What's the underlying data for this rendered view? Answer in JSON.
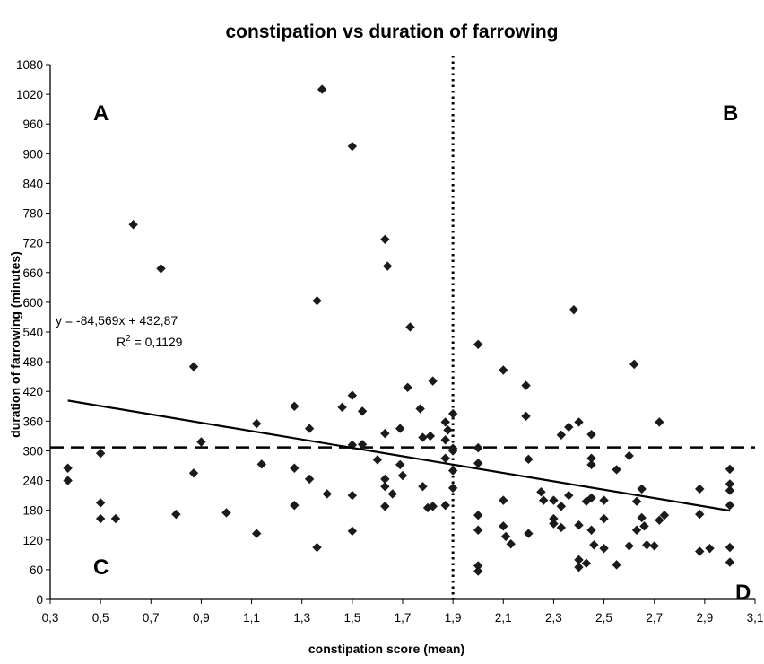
{
  "chart_data": {
    "type": "scatter",
    "title": "constipation vs duration of farrowing",
    "xlabel": "constipation score (mean)",
    "ylabel": "duration of farrowing (minutes)",
    "xlim": [
      0.3,
      3.1
    ],
    "ylim": [
      0,
      1080
    ],
    "x_ticks": [
      "0,3",
      "0,5",
      "0,7",
      "0,9",
      "1,1",
      "1,3",
      "1,5",
      "1,7",
      "1,9",
      "2,1",
      "2,3",
      "2,5",
      "2,7",
      "2,9",
      "3,1"
    ],
    "y_ticks": [
      "0",
      "60",
      "120",
      "180",
      "240",
      "300",
      "360",
      "420",
      "480",
      "540",
      "600",
      "660",
      "720",
      "780",
      "840",
      "900",
      "960",
      "1020",
      "1080"
    ],
    "grid": false,
    "marker": "diamond",
    "marker_color": "#1a1a1a",
    "quadrant_labels": [
      "A",
      "B",
      "C",
      "D"
    ],
    "reference_lines": {
      "vertical_x": 1.9,
      "horizontal_y": 307
    },
    "trendline": {
      "slope": -84.569,
      "intercept": 432.87,
      "x_range": [
        0.37,
        3.0
      ],
      "equation_label": "y = -84,569x + 432,87",
      "r2_label": "R",
      "r2_sup": "2",
      "r2_value": " = 0,1129"
    },
    "points": [
      [
        0.37,
        265
      ],
      [
        0.37,
        240
      ],
      [
        0.5,
        295
      ],
      [
        0.5,
        195
      ],
      [
        0.5,
        163
      ],
      [
        0.56,
        163
      ],
      [
        0.63,
        757
      ],
      [
        0.74,
        668
      ],
      [
        0.8,
        172
      ],
      [
        0.87,
        470
      ],
      [
        0.87,
        255
      ],
      [
        0.9,
        318
      ],
      [
        1.0,
        175
      ],
      [
        1.12,
        355
      ],
      [
        1.12,
        133
      ],
      [
        1.14,
        273
      ],
      [
        1.27,
        390
      ],
      [
        1.27,
        265
      ],
      [
        1.27,
        190
      ],
      [
        1.33,
        345
      ],
      [
        1.33,
        243
      ],
      [
        1.36,
        603
      ],
      [
        1.36,
        105
      ],
      [
        1.38,
        1030
      ],
      [
        1.4,
        213
      ],
      [
        1.46,
        388
      ],
      [
        1.5,
        915
      ],
      [
        1.5,
        412
      ],
      [
        1.5,
        312
      ],
      [
        1.5,
        210
      ],
      [
        1.5,
        138
      ],
      [
        1.54,
        380
      ],
      [
        1.54,
        313
      ],
      [
        1.6,
        282
      ],
      [
        1.63,
        727
      ],
      [
        1.63,
        335
      ],
      [
        1.63,
        243
      ],
      [
        1.63,
        228
      ],
      [
        1.63,
        188
      ],
      [
        1.64,
        673
      ],
      [
        1.66,
        213
      ],
      [
        1.69,
        345
      ],
      [
        1.69,
        272
      ],
      [
        1.7,
        250
      ],
      [
        1.72,
        428
      ],
      [
        1.73,
        550
      ],
      [
        1.77,
        385
      ],
      [
        1.78,
        327
      ],
      [
        1.78,
        228
      ],
      [
        1.8,
        185
      ],
      [
        1.81,
        330
      ],
      [
        1.82,
        441
      ],
      [
        1.82,
        188
      ],
      [
        1.87,
        358
      ],
      [
        1.87,
        322
      ],
      [
        1.87,
        285
      ],
      [
        1.87,
        190
      ],
      [
        1.88,
        342
      ],
      [
        1.9,
        375
      ],
      [
        1.9,
        305
      ],
      [
        1.9,
        300
      ],
      [
        1.9,
        260
      ],
      [
        1.9,
        225
      ],
      [
        2.0,
        515
      ],
      [
        2.0,
        306
      ],
      [
        2.0,
        275
      ],
      [
        2.0,
        170
      ],
      [
        2.0,
        140
      ],
      [
        2.0,
        68
      ],
      [
        2.0,
        57
      ],
      [
        2.1,
        463
      ],
      [
        2.1,
        200
      ],
      [
        2.1,
        148
      ],
      [
        2.11,
        127
      ],
      [
        2.13,
        112
      ],
      [
        2.19,
        432
      ],
      [
        2.19,
        370
      ],
      [
        2.2,
        283
      ],
      [
        2.2,
        133
      ],
      [
        2.25,
        217
      ],
      [
        2.26,
        200
      ],
      [
        2.3,
        200
      ],
      [
        2.3,
        163
      ],
      [
        2.3,
        153
      ],
      [
        2.33,
        332
      ],
      [
        2.33,
        188
      ],
      [
        2.33,
        145
      ],
      [
        2.36,
        348
      ],
      [
        2.36,
        210
      ],
      [
        2.38,
        585
      ],
      [
        2.4,
        358
      ],
      [
        2.4,
        150
      ],
      [
        2.4,
        80
      ],
      [
        2.4,
        65
      ],
      [
        2.43,
        73
      ],
      [
        2.43,
        198
      ],
      [
        2.45,
        333
      ],
      [
        2.45,
        285
      ],
      [
        2.45,
        272
      ],
      [
        2.45,
        205
      ],
      [
        2.45,
        140
      ],
      [
        2.46,
        110
      ],
      [
        2.5,
        200
      ],
      [
        2.5,
        163
      ],
      [
        2.5,
        103
      ],
      [
        2.55,
        262
      ],
      [
        2.55,
        70
      ],
      [
        2.6,
        290
      ],
      [
        2.6,
        108
      ],
      [
        2.62,
        475
      ],
      [
        2.63,
        198
      ],
      [
        2.63,
        140
      ],
      [
        2.65,
        223
      ],
      [
        2.65,
        165
      ],
      [
        2.66,
        148
      ],
      [
        2.67,
        110
      ],
      [
        2.7,
        108
      ],
      [
        2.72,
        358
      ],
      [
        2.72,
        160
      ],
      [
        2.74,
        170
      ],
      [
        2.88,
        223
      ],
      [
        2.88,
        172
      ],
      [
        2.88,
        97
      ],
      [
        2.92,
        103
      ],
      [
        3.0,
        263
      ],
      [
        3.0,
        233
      ],
      [
        3.0,
        220
      ],
      [
        3.0,
        190
      ],
      [
        3.0,
        105
      ],
      [
        3.0,
        75
      ]
    ]
  }
}
